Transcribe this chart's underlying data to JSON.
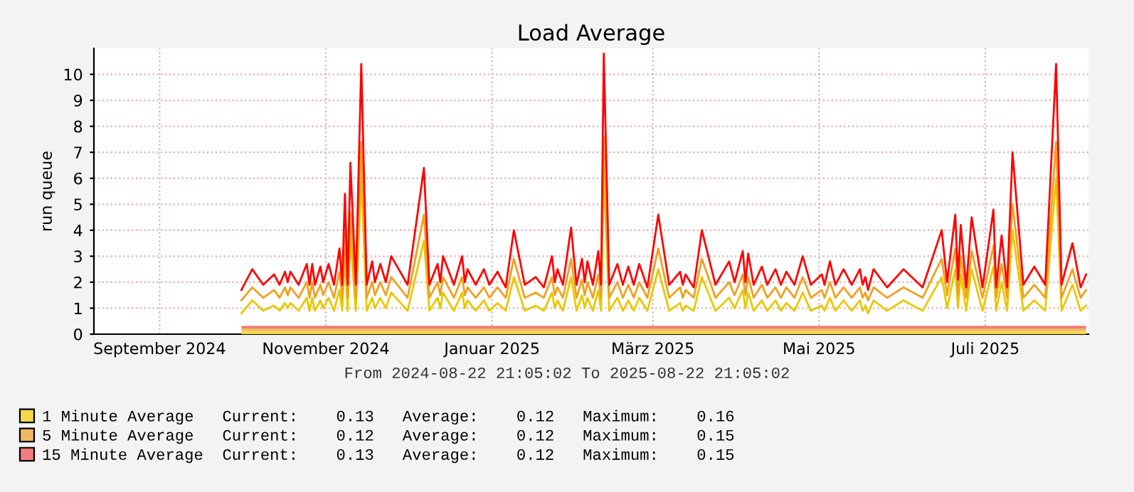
{
  "chart_data": {
    "type": "line",
    "title": "Load Average",
    "ylabel": "run queue",
    "annotations": [
      "From 2024-08-22 21:05:02 To 2025-08-22 21:05:02"
    ],
    "xlim": [
      "2024-08-22T21:05",
      "2025-08-22T21:05"
    ],
    "xticks": [
      {
        "value": "2024-09-16",
        "label": "September 2024"
      },
      {
        "value": "2024-11-16",
        "label": "November 2024"
      },
      {
        "value": "2025-01-16",
        "label": "Januar 2025"
      },
      {
        "value": "2025-03-16",
        "label": "März 2025"
      },
      {
        "value": "2025-05-16",
        "label": "Mai 2025"
      },
      {
        "value": "2025-07-16",
        "label": "Juli 2025"
      }
    ],
    "ylim": [
      0,
      11
    ],
    "yticks": [
      0,
      1,
      2,
      3,
      4,
      5,
      6,
      7,
      8,
      9,
      10
    ],
    "grid": true,
    "legend": "bottom left",
    "stacked": true,
    "x": [
      "2024-10-16",
      "2024-10-20",
      "2024-10-24",
      "2024-10-28",
      "2024-10-30",
      "2024-11-01",
      "2024-11-02",
      "2024-11-03",
      "2024-11-06",
      "2024-11-09",
      "2024-11-10",
      "2024-11-11",
      "2024-11-12",
      "2024-11-14",
      "2024-11-15",
      "2024-11-17",
      "2024-11-19",
      "2024-11-21",
      "2024-11-22",
      "2024-11-23",
      "2024-11-24",
      "2024-11-25",
      "2024-11-27",
      "2024-11-29",
      "2024-12-01",
      "2024-12-03",
      "2024-12-04",
      "2024-12-06",
      "2024-12-08",
      "2024-12-10",
      "2024-12-16",
      "2024-12-22",
      "2024-12-24",
      "2024-12-27",
      "2024-12-28",
      "2024-12-29",
      "2025-01-02",
      "2025-01-05",
      "2025-01-06",
      "2025-01-07",
      "2025-01-10",
      "2025-01-13",
      "2025-01-15",
      "2025-01-18",
      "2025-01-21",
      "2025-01-24",
      "2025-01-28",
      "2025-02-01",
      "2025-02-04",
      "2025-02-07",
      "2025-02-08",
      "2025-02-09",
      "2025-02-11",
      "2025-02-14",
      "2025-02-16",
      "2025-02-18",
      "2025-02-19",
      "2025-02-20",
      "2025-02-22",
      "2025-02-24",
      "2025-02-25",
      "2025-02-26",
      "2025-02-28",
      "2025-03-03",
      "2025-03-05",
      "2025-03-07",
      "2025-03-09",
      "2025-03-11",
      "2025-03-14",
      "2025-03-18",
      "2025-03-22",
      "2025-03-26",
      "2025-03-27",
      "2025-03-28",
      "2025-03-31",
      "2025-04-03",
      "2025-04-08",
      "2025-04-13",
      "2025-04-15",
      "2025-04-18",
      "2025-04-19",
      "2025-04-20",
      "2025-04-22",
      "2025-04-25",
      "2025-04-27",
      "2025-04-30",
      "2025-05-02",
      "2025-05-04",
      "2025-05-07",
      "2025-05-10",
      "2025-05-13",
      "2025-05-17",
      "2025-05-18",
      "2025-05-20",
      "2025-05-22",
      "2025-05-25",
      "2025-05-28",
      "2025-05-31",
      "2025-06-01",
      "2025-06-02",
      "2025-06-03",
      "2025-06-05",
      "2025-06-10",
      "2025-06-16",
      "2025-06-23",
      "2025-06-30",
      "2025-07-02",
      "2025-07-05",
      "2025-07-06",
      "2025-07-07",
      "2025-07-09",
      "2025-07-11",
      "2025-07-15",
      "2025-07-19",
      "2025-07-20",
      "2025-07-22",
      "2025-07-24",
      "2025-07-26",
      "2025-07-30",
      "2025-08-03",
      "2025-08-07",
      "2025-08-11",
      "2025-08-13",
      "2025-08-17",
      "2025-08-20",
      "2025-08-22"
    ],
    "series": [
      {
        "name": "1 Minute Average   Current:    0.13   Average:    0.12   Maximum:    0.16",
        "type": "area",
        "color": "#f5d94a",
        "x": [
          "2024-10-16",
          "2025-08-22"
        ],
        "values": [
          0.12,
          0.12
        ]
      },
      {
        "name": "5 Minute Average   Current:    0.12   Average:    0.12   Maximum:    0.15",
        "type": "area",
        "color": "#f0b860",
        "x": [
          "2024-10-16",
          "2025-08-22"
        ],
        "values": [
          0.1,
          0.1
        ]
      },
      {
        "name": "15 Minute Average  Current:    0.13   Average:    0.12   Maximum:    0.15",
        "type": "area",
        "color": "#f47c7c",
        "x": [
          "2024-10-16",
          "2025-08-22"
        ],
        "values": [
          0.1,
          0.1
        ]
      },
      {
        "color": "#e8c800",
        "values": [
          0.8,
          1.3,
          0.9,
          1.1,
          0.9,
          1.2,
          1.0,
          1.2,
          0.9,
          1.4,
          0.9,
          1.4,
          0.9,
          1.3,
          1.0,
          1.4,
          0.9,
          1.7,
          0.9,
          3.0,
          0.9,
          3.7,
          0.9,
          6.0,
          0.9,
          1.4,
          1.0,
          1.4,
          1.0,
          1.6,
          0.9,
          3.6,
          0.9,
          1.4,
          1.0,
          1.6,
          0.9,
          1.6,
          1.0,
          1.3,
          0.9,
          1.3,
          0.9,
          1.2,
          0.9,
          2.2,
          0.9,
          1.1,
          0.9,
          1.6,
          1.0,
          1.3,
          0.9,
          2.2,
          0.9,
          1.5,
          1.0,
          1.4,
          0.9,
          1.7,
          0.9,
          6.2,
          0.9,
          1.4,
          0.9,
          1.3,
          0.9,
          1.4,
          0.9,
          2.5,
          0.9,
          1.2,
          0.9,
          1.1,
          0.9,
          2.2,
          0.9,
          1.4,
          1.0,
          1.7,
          1.0,
          1.6,
          0.9,
          1.3,
          0.9,
          1.3,
          0.9,
          1.2,
          0.9,
          1.6,
          0.9,
          1.1,
          0.9,
          1.4,
          0.9,
          1.3,
          0.9,
          1.3,
          0.9,
          1.1,
          0.8,
          1.3,
          0.9,
          1.3,
          0.9,
          2.2,
          1.0,
          2.5,
          1.0,
          2.3,
          0.9,
          2.5,
          0.9,
          2.6,
          0.9,
          2.0,
          0.9,
          4.0,
          0.9,
          1.3,
          0.9,
          6.0,
          0.9,
          1.9,
          0.9,
          1.1
        ]
      },
      {
        "color": "#f0a020",
        "values": [
          1.3,
          1.8,
          1.4,
          1.7,
          1.4,
          1.8,
          1.5,
          1.8,
          1.4,
          2.0,
          1.4,
          2.0,
          1.4,
          1.9,
          1.5,
          2.0,
          1.4,
          2.4,
          1.4,
          3.9,
          1.4,
          4.7,
          1.4,
          7.4,
          1.4,
          2.0,
          1.5,
          2.0,
          1.5,
          2.2,
          1.4,
          4.6,
          1.4,
          2.0,
          1.5,
          2.2,
          1.4,
          2.2,
          1.5,
          1.8,
          1.4,
          1.8,
          1.4,
          1.8,
          1.4,
          2.9,
          1.4,
          1.6,
          1.4,
          2.2,
          1.5,
          1.8,
          1.4,
          2.9,
          1.4,
          2.1,
          1.5,
          2.0,
          1.4,
          2.3,
          1.4,
          7.6,
          1.4,
          2.0,
          1.4,
          1.9,
          1.4,
          2.0,
          1.4,
          3.3,
          1.4,
          1.8,
          1.4,
          1.7,
          1.4,
          2.9,
          1.4,
          2.0,
          1.5,
          2.3,
          1.5,
          2.2,
          1.4,
          1.9,
          1.4,
          1.8,
          1.4,
          1.8,
          1.4,
          2.2,
          1.4,
          1.7,
          1.4,
          2.0,
          1.4,
          1.8,
          1.4,
          1.8,
          1.4,
          1.6,
          1.3,
          1.8,
          1.4,
          1.8,
          1.4,
          2.9,
          1.5,
          3.3,
          1.5,
          3.0,
          1.4,
          3.2,
          1.4,
          3.4,
          1.4,
          2.7,
          1.4,
          5.0,
          1.4,
          1.9,
          1.4,
          7.4,
          1.4,
          2.5,
          1.4,
          1.7
        ]
      },
      {
        "color": "#ff0000",
        "values": [
          1.7,
          2.5,
          1.9,
          2.3,
          1.9,
          2.4,
          2.0,
          2.4,
          1.9,
          2.7,
          1.9,
          2.7,
          1.9,
          2.6,
          2.0,
          2.7,
          1.9,
          3.3,
          1.9,
          5.4,
          1.9,
          6.6,
          1.9,
          10.4,
          1.9,
          2.8,
          2.0,
          2.7,
          2.0,
          3.0,
          1.9,
          6.4,
          1.9,
          2.7,
          2.0,
          3.0,
          1.9,
          3.0,
          2.0,
          2.5,
          1.9,
          2.5,
          1.9,
          2.4,
          1.8,
          4.0,
          1.9,
          2.2,
          1.8,
          3.0,
          2.0,
          2.5,
          1.9,
          4.1,
          1.9,
          2.9,
          2.0,
          2.8,
          1.9,
          3.2,
          1.9,
          10.8,
          1.9,
          2.7,
          1.9,
          2.6,
          1.9,
          2.7,
          1.8,
          4.6,
          1.9,
          2.4,
          1.9,
          2.3,
          1.8,
          4.0,
          1.9,
          2.8,
          2.0,
          3.2,
          2.0,
          3.1,
          1.9,
          2.6,
          1.9,
          2.5,
          1.9,
          2.4,
          1.9,
          3.0,
          1.9,
          2.3,
          1.9,
          2.8,
          1.9,
          2.5,
          1.9,
          2.5,
          1.9,
          2.2,
          1.7,
          2.5,
          1.8,
          2.5,
          1.8,
          4.0,
          2.0,
          4.6,
          2.1,
          4.2,
          1.8,
          4.5,
          1.8,
          4.8,
          1.8,
          3.8,
          1.8,
          7.0,
          1.9,
          2.6,
          1.9,
          10.4,
          1.9,
          3.5,
          1.8,
          2.3
        ]
      }
    ]
  }
}
